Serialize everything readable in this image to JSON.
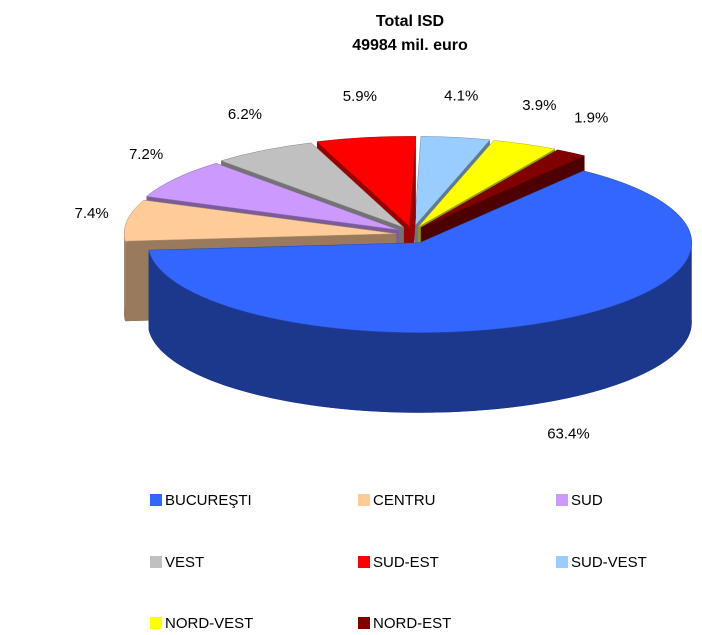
{
  "chart_data": {
    "type": "pie3d",
    "title": "Total ISD",
    "subtitle": "49984 mil. euro",
    "categories": [
      "BUCUREŞTI",
      "CENTRU",
      "SUD",
      "VEST",
      "SUD-EST",
      "SUD-VEST",
      "NORD-VEST",
      "NORD-EST"
    ],
    "values": [
      63.4,
      7.4,
      7.2,
      6.2,
      5.9,
      4.1,
      3.9,
      1.9
    ],
    "value_labels": [
      "63.4%",
      "7.4%",
      "7.2%",
      "6.2%",
      "5.9%",
      "4.1%",
      "3.9%",
      "1.9%"
    ],
    "colors": [
      "#3366ff",
      "#ffcc99",
      "#cc99ff",
      "#c0c0c0",
      "#ff0000",
      "#99ccff",
      "#ffff00",
      "#800000"
    ],
    "legend": "bottom"
  }
}
